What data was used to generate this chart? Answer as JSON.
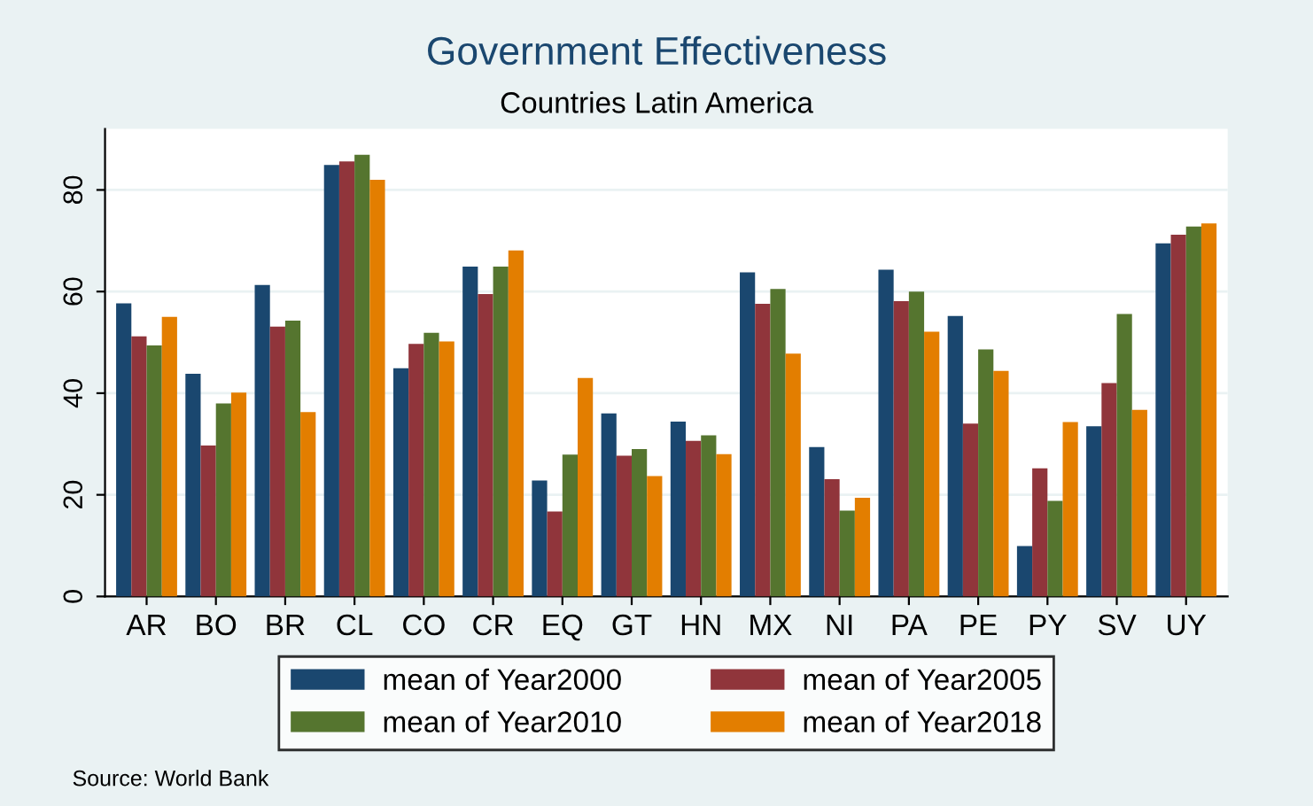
{
  "chart_data": {
    "type": "bar",
    "title": "Government Effectiveness",
    "subtitle": "Countries Latin America",
    "categories": [
      "AR",
      "BO",
      "BR",
      "CL",
      "CO",
      "CR",
      "EQ",
      "GT",
      "HN",
      "MX",
      "NI",
      "PA",
      "PE",
      "PY",
      "SV",
      "UY"
    ],
    "series": [
      {
        "name": "mean of Year2000",
        "color": "#1a476f",
        "values": [
          57.7,
          43.8,
          61.3,
          84.9,
          44.9,
          64.9,
          22.8,
          36.0,
          34.4,
          63.8,
          29.4,
          64.3,
          55.2,
          9.9,
          33.5,
          69.5
        ]
      },
      {
        "name": "mean of Year2005",
        "color": "#90353b",
        "values": [
          51.2,
          29.7,
          53.1,
          85.6,
          49.7,
          59.5,
          16.7,
          27.7,
          30.6,
          57.6,
          23.1,
          58.1,
          34.0,
          25.2,
          42.0,
          71.2
        ]
      },
      {
        "name": "mean of Year2010",
        "color": "#55752f",
        "values": [
          49.4,
          38.0,
          54.3,
          86.9,
          51.9,
          64.9,
          27.9,
          29.0,
          31.7,
          60.5,
          16.9,
          60.0,
          48.6,
          18.8,
          55.6,
          72.8
        ]
      },
      {
        "name": "mean of Year2018",
        "color": "#e37e00",
        "values": [
          55.0,
          40.1,
          36.3,
          82.0,
          50.2,
          68.1,
          43.0,
          23.7,
          28.0,
          47.8,
          19.4,
          52.1,
          44.4,
          34.3,
          36.7,
          73.4
        ]
      }
    ],
    "ylim": [
      0,
      92
    ],
    "yticks": [
      0,
      20,
      40,
      60,
      80
    ],
    "grid": "y",
    "legend": "bottom",
    "annotations": [
      "Source: World Bank"
    ]
  }
}
